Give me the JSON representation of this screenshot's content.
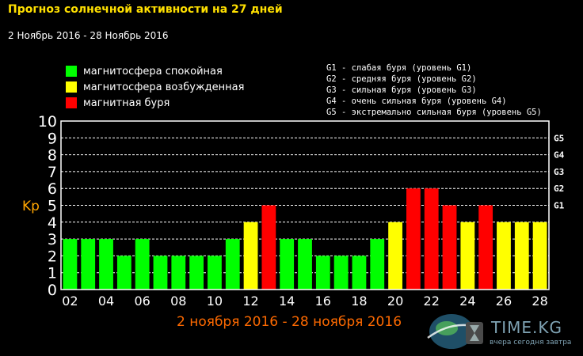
{
  "header": {
    "title": "Прогноз солнечной активности на 27 дней",
    "date_range": "2 Ноябрь 2016 - 28 Ноябрь 2016"
  },
  "legend": [
    {
      "label": "магнитосфера спокойная",
      "color": "#00ff00"
    },
    {
      "label": "магнитосфера возбужденная",
      "color": "#ffff00"
    },
    {
      "label": "магнитная буря",
      "color": "#ff0000"
    }
  ],
  "storm_levels": [
    "G1 - слабая буря (уровень G1)",
    "G2 - средняя буря (уровень G2)",
    "G3 - сильная буря (уровень G3)",
    "G4 - очень сильная буря (уровень G4)",
    "G5 - экстремально сильная буря (уровень G5)"
  ],
  "watermark": {
    "brand": "TIME.KG",
    "tagline": "вчера сегодня завтра"
  },
  "chart_data": {
    "type": "bar",
    "ylabel": "Kp",
    "xlabel": "2 ноября 2016 - 28 ноября 2016",
    "ylim": [
      0,
      10
    ],
    "yticks": [
      "0",
      "1",
      "2",
      "3",
      "4",
      "5",
      "6",
      "7",
      "8",
      "9",
      "10"
    ],
    "right_axis": [
      {
        "label": "G1",
        "value": 5
      },
      {
        "label": "G2",
        "value": 6
      },
      {
        "label": "G3",
        "value": 7
      },
      {
        "label": "G4",
        "value": 8
      },
      {
        "label": "G5",
        "value": 9
      }
    ],
    "categories": [
      "02",
      "03",
      "04",
      "05",
      "06",
      "07",
      "08",
      "09",
      "10",
      "11",
      "12",
      "13",
      "14",
      "15",
      "16",
      "17",
      "18",
      "19",
      "20",
      "21",
      "22",
      "23",
      "24",
      "25",
      "26",
      "27",
      "28"
    ],
    "xtick_labels": [
      "02",
      "04",
      "06",
      "08",
      "10",
      "12",
      "14",
      "16",
      "18",
      "20",
      "22",
      "24",
      "26",
      "28"
    ],
    "values": [
      3,
      3,
      3,
      2,
      3,
      2,
      2,
      2,
      2,
      3,
      4,
      5,
      3,
      3,
      2,
      2,
      2,
      3,
      4,
      6,
      6,
      5,
      4,
      5,
      4,
      4,
      4
    ],
    "colors": {
      "calm": "#00ff00",
      "active": "#ffff00",
      "storm": "#ff0000"
    },
    "grid": true
  }
}
